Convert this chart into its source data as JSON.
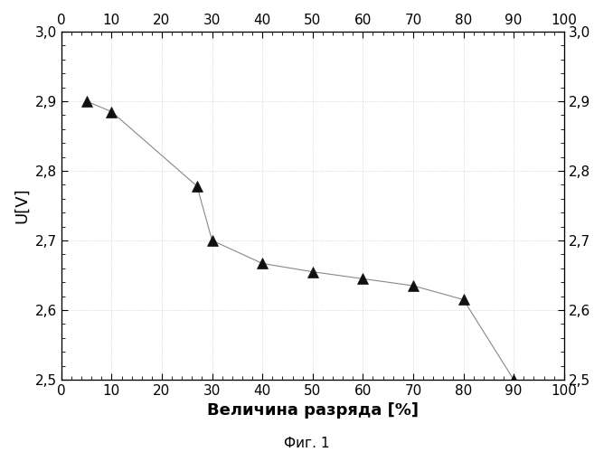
{
  "x": [
    5,
    10,
    27,
    30,
    40,
    50,
    60,
    70,
    80,
    90
  ],
  "y": [
    2.9,
    2.885,
    2.778,
    2.7,
    2.667,
    2.655,
    2.645,
    2.635,
    2.615,
    2.5
  ],
  "xlim": [
    0,
    100
  ],
  "ylim": [
    2.5,
    3.0
  ],
  "xlabel": "Величина разряда [%]",
  "ylabel": "U[V]",
  "xticks": [
    0,
    10,
    20,
    30,
    40,
    50,
    60,
    70,
    80,
    90,
    100
  ],
  "yticks": [
    2.5,
    2.6,
    2.7,
    2.8,
    2.9,
    3.0
  ],
  "caption": "Фиг. 1",
  "line_color": "#888888",
  "marker_color": "#111111",
  "bg_color": "#ffffff",
  "grid_color": "#cccccc"
}
